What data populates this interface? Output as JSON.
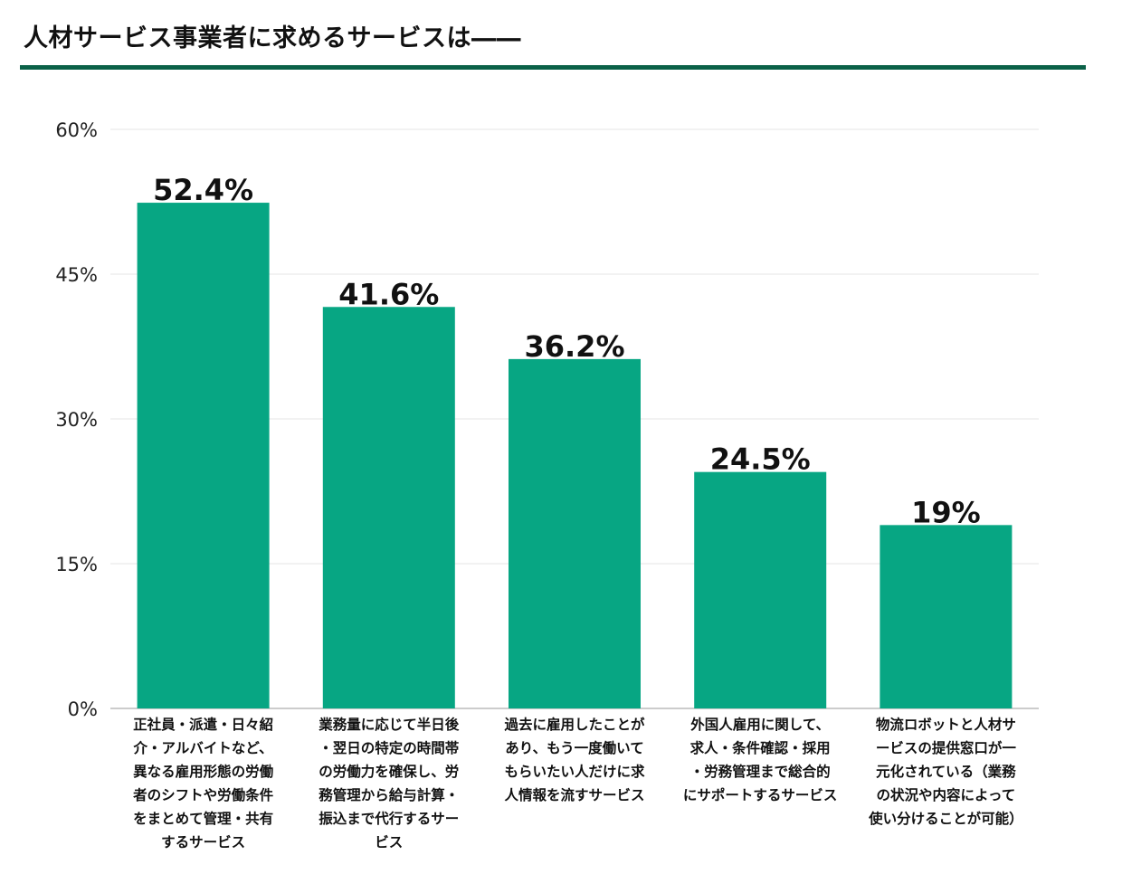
{
  "title": "人材サービス事業者に求めるサービスは――",
  "colors": {
    "bar": "#07a683",
    "rule": "#0b6148",
    "grid": "#e6e6e6",
    "axis": "#bbbbbb"
  },
  "chart_data": {
    "type": "bar",
    "title": "人材サービス事業者に求めるサービスは――",
    "categories": [
      [
        "正社員・派遣・日々紹",
        "介・アルバイトなど、",
        "異なる雇用形態の労働",
        "者のシフトや労働条件",
        "をまとめて管理・共有",
        "するサービス"
      ],
      [
        "業務量に応じて半日後",
        "・翌日の特定の時間帯",
        "の労働力を確保し、労",
        "務管理から給与計算・",
        "振込まで代行するサー",
        "ビス"
      ],
      [
        "過去に雇用したことが",
        "あり、もう一度働いて",
        "もらいたい人だけに求",
        "人情報を流すサービス"
      ],
      [
        "外国人雇用に関して、",
        "求人・条件確認・採用",
        "・労務管理まで総合的",
        "にサポートするサービス"
      ],
      [
        "物流ロボットと人材サ",
        "ービスの提供窓口が一",
        "元化されている（業務",
        "の状況や内容によって",
        "使い分けることが可能）"
      ]
    ],
    "values": [
      52.4,
      41.6,
      36.2,
      24.5,
      19
    ],
    "value_labels": [
      "52.4%",
      "41.6%",
      "36.2%",
      "24.5%",
      "19%"
    ],
    "yticks": [
      "0%",
      "15%",
      "30%",
      "45%",
      "60%"
    ],
    "ytick_values": [
      0,
      15,
      30,
      45,
      60
    ],
    "ylim": [
      0,
      60
    ],
    "xlabel": "",
    "ylabel": "",
    "grid": true
  }
}
